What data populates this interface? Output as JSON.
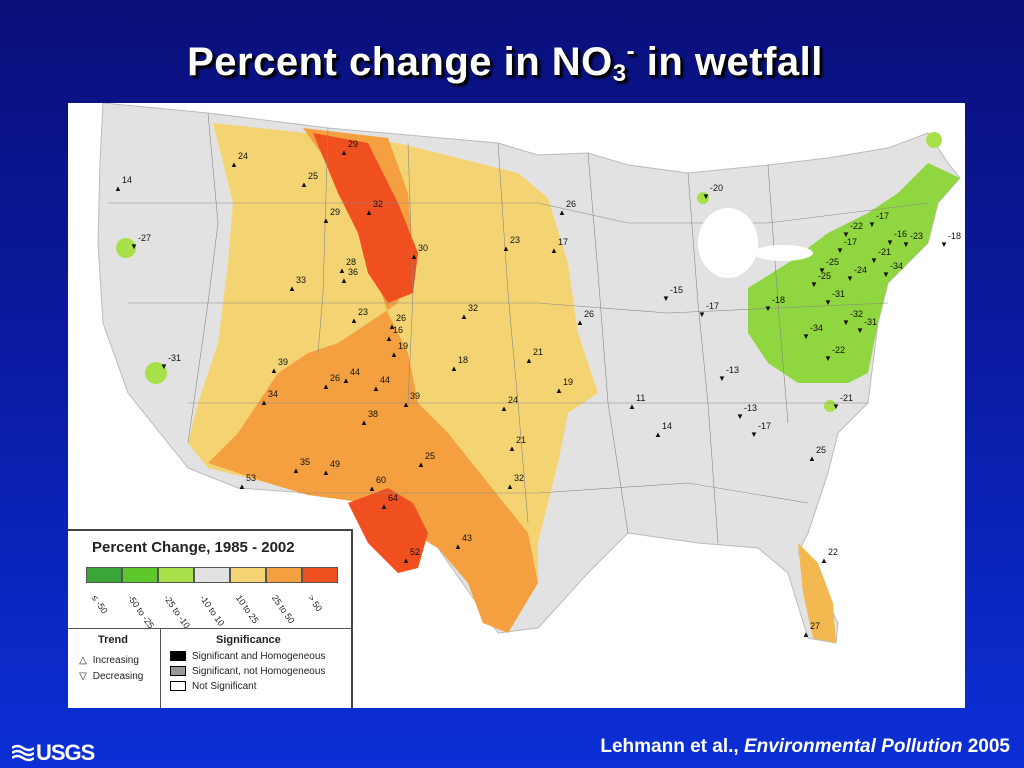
{
  "slide": {
    "title_main": "Percent change in NO",
    "title_sub": "3",
    "title_sup": "-",
    "title_tail": " in wetfall",
    "citation_authors": "Lehmann et al., ",
    "citation_journal": "Environmental Pollution",
    "citation_year": " 2005",
    "logo_text": "USGS"
  },
  "legend": {
    "title": "Percent Change, 1985 - 2002",
    "classes": [
      {
        "label": "≤ -50",
        "color": "#3aa63a"
      },
      {
        "label": "-50 to -25",
        "color": "#5cc82a"
      },
      {
        "label": "-25 to -10",
        "color": "#a8e04a"
      },
      {
        "label": "-10 to 10",
        "color": "#e2e2e2"
      },
      {
        "label": "10 to 25",
        "color": "#f4d472"
      },
      {
        "label": "25 to 50",
        "color": "#f4a040"
      },
      {
        "label": "> 50",
        "color": "#f05020"
      }
    ],
    "trend_header": "Trend",
    "trend_increasing": "Increasing",
    "trend_decreasing": "Decreasing",
    "significance_header": "Significance",
    "sig_homogeneous": "Significant and Homogeneous",
    "sig_not_homogeneous": "Significant, not Homogeneous",
    "sig_not": "Not Significant",
    "sig_colors": {
      "homogeneous": "#000000",
      "not_homogeneous": "#999999",
      "not": "#ffffff"
    }
  },
  "site_labels": [
    "29",
    "24",
    "25",
    "32",
    "29",
    "30",
    "28",
    "36",
    "33",
    "26",
    "23",
    "17",
    "26",
    "23",
    "26",
    "16",
    "19",
    "32",
    "18",
    "21",
    "19",
    "39",
    "44",
    "26",
    "44",
    "34",
    "38",
    "39",
    "24",
    "21",
    "25",
    "35",
    "49",
    "32",
    "53",
    "60",
    "64",
    "52",
    "43",
    "14",
    "-27",
    "-31",
    "-20",
    "-22",
    "-17",
    "-16",
    "-23",
    "-18",
    "-17",
    "-21",
    "-25",
    "-24",
    "-34",
    "-25",
    "-18",
    "-31",
    "-34",
    "-32",
    "-31",
    "-22",
    "-15",
    "-17",
    "-13",
    "11",
    "-13",
    "-17",
    "14",
    "-21",
    "25",
    "22",
    "27"
  ]
}
